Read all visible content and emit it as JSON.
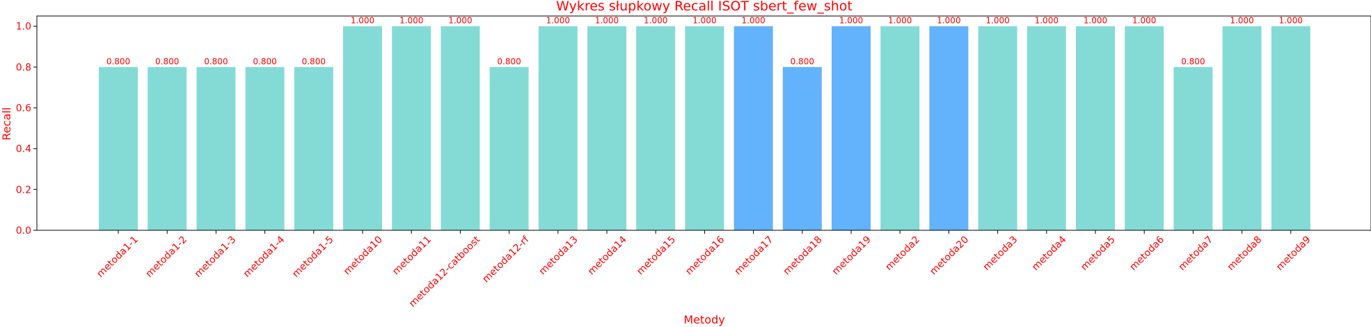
{
  "chart_data": {
    "type": "bar",
    "title": "Wykres słupkowy Recall ISOT sbert_few_shot",
    "xlabel": "Metody",
    "ylabel": "Recall",
    "ylim": [
      0,
      1.05
    ],
    "yticks": [
      0.0,
      0.2,
      0.4,
      0.6,
      0.8,
      1.0
    ],
    "ytick_labels": [
      "0.0",
      "0.2",
      "0.4",
      "0.6",
      "0.8",
      "1.0"
    ],
    "grid": false,
    "categories": [
      "metoda1-1",
      "metoda1-2",
      "metoda1-3",
      "metoda1-4",
      "metoda1-5",
      "metoda10",
      "metoda11",
      "metoda12-catboost",
      "metoda12-rf",
      "metoda13",
      "metoda14",
      "metoda15",
      "metoda16",
      "metoda17",
      "metoda18",
      "metoda19",
      "metoda2",
      "metoda20",
      "metoda3",
      "metoda4",
      "metoda5",
      "metoda6",
      "metoda7",
      "metoda8",
      "metoda9"
    ],
    "values": [
      0.8,
      0.8,
      0.8,
      0.8,
      0.8,
      1.0,
      1.0,
      1.0,
      0.8,
      1.0,
      1.0,
      1.0,
      1.0,
      1.0,
      0.8,
      1.0,
      1.0,
      1.0,
      1.0,
      1.0,
      1.0,
      1.0,
      0.8,
      1.0,
      1.0
    ],
    "value_labels": [
      "0.800",
      "0.800",
      "0.800",
      "0.800",
      "0.800",
      "1.000",
      "1.000",
      "1.000",
      "0.800",
      "1.000",
      "1.000",
      "1.000",
      "1.000",
      "1.000",
      "0.800",
      "1.000",
      "1.000",
      "1.000",
      "1.000",
      "1.000",
      "1.000",
      "1.000",
      "0.800",
      "1.000",
      "1.000"
    ],
    "highlighted": [
      "metoda17",
      "metoda18",
      "metoda19",
      "metoda20"
    ],
    "colors": {
      "bar": "#84dbd6",
      "highlight": "#63b2fc",
      "text": "#ff0000",
      "axis": "#000000"
    }
  }
}
